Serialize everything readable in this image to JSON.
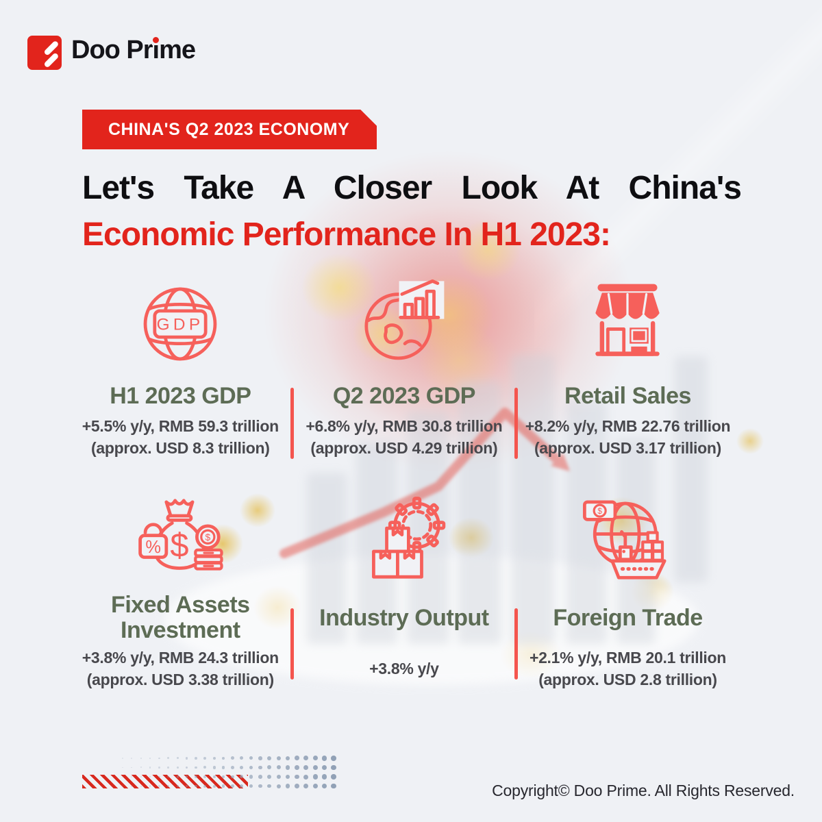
{
  "brand": {
    "name": "Doo Prime"
  },
  "badge": {
    "label": "CHINA'S Q2 2023 ECONOMY"
  },
  "title": {
    "line1": "Let's Take A Closer Look At China's",
    "line2": "Economic Performance In H1 2023:"
  },
  "stats": [
    {
      "icon": "gdp-globe-icon",
      "title": "H1 2023 GDP",
      "line1": "+5.5% y/y, RMB 59.3 trillion",
      "line2": "(approx. USD 8.3 trillion)"
    },
    {
      "icon": "globe-chart-icon",
      "title": "Q2 2023 GDP",
      "line1": "+6.8% y/y, RMB 30.8 trillion",
      "line2": "(approx. USD 4.29 trillion)"
    },
    {
      "icon": "storefront-icon",
      "title": "Retail Sales",
      "line1": "+8.2% y/y, RMB 22.76 trillion",
      "line2": "(approx. USD 3.17 trillion)"
    },
    {
      "icon": "money-bag-icon",
      "title": "Fixed Assets Investment",
      "line1": "+3.8% y/y, RMB 24.3 trillion",
      "line2": "(approx. USD 3.38 trillion)"
    },
    {
      "icon": "industry-gear-icon",
      "title": "Industry Output",
      "line1": "+3.8% y/y"
    },
    {
      "icon": "globe-ship-icon",
      "title": "Foreign Trade",
      "line1": "+2.1% y/y, RMB 20.1 trillion",
      "line2": "(approx. USD 2.8 trillion)"
    }
  ],
  "footer": {
    "copyright": "Copyright© Doo Prime. All Rights Reserved."
  },
  "colors": {
    "accent_red": "#E2241C",
    "icon_red": "#F6605B",
    "heading_green": "#5D6C55",
    "body_gray": "#48484D",
    "divider_red": "#F4554E"
  }
}
